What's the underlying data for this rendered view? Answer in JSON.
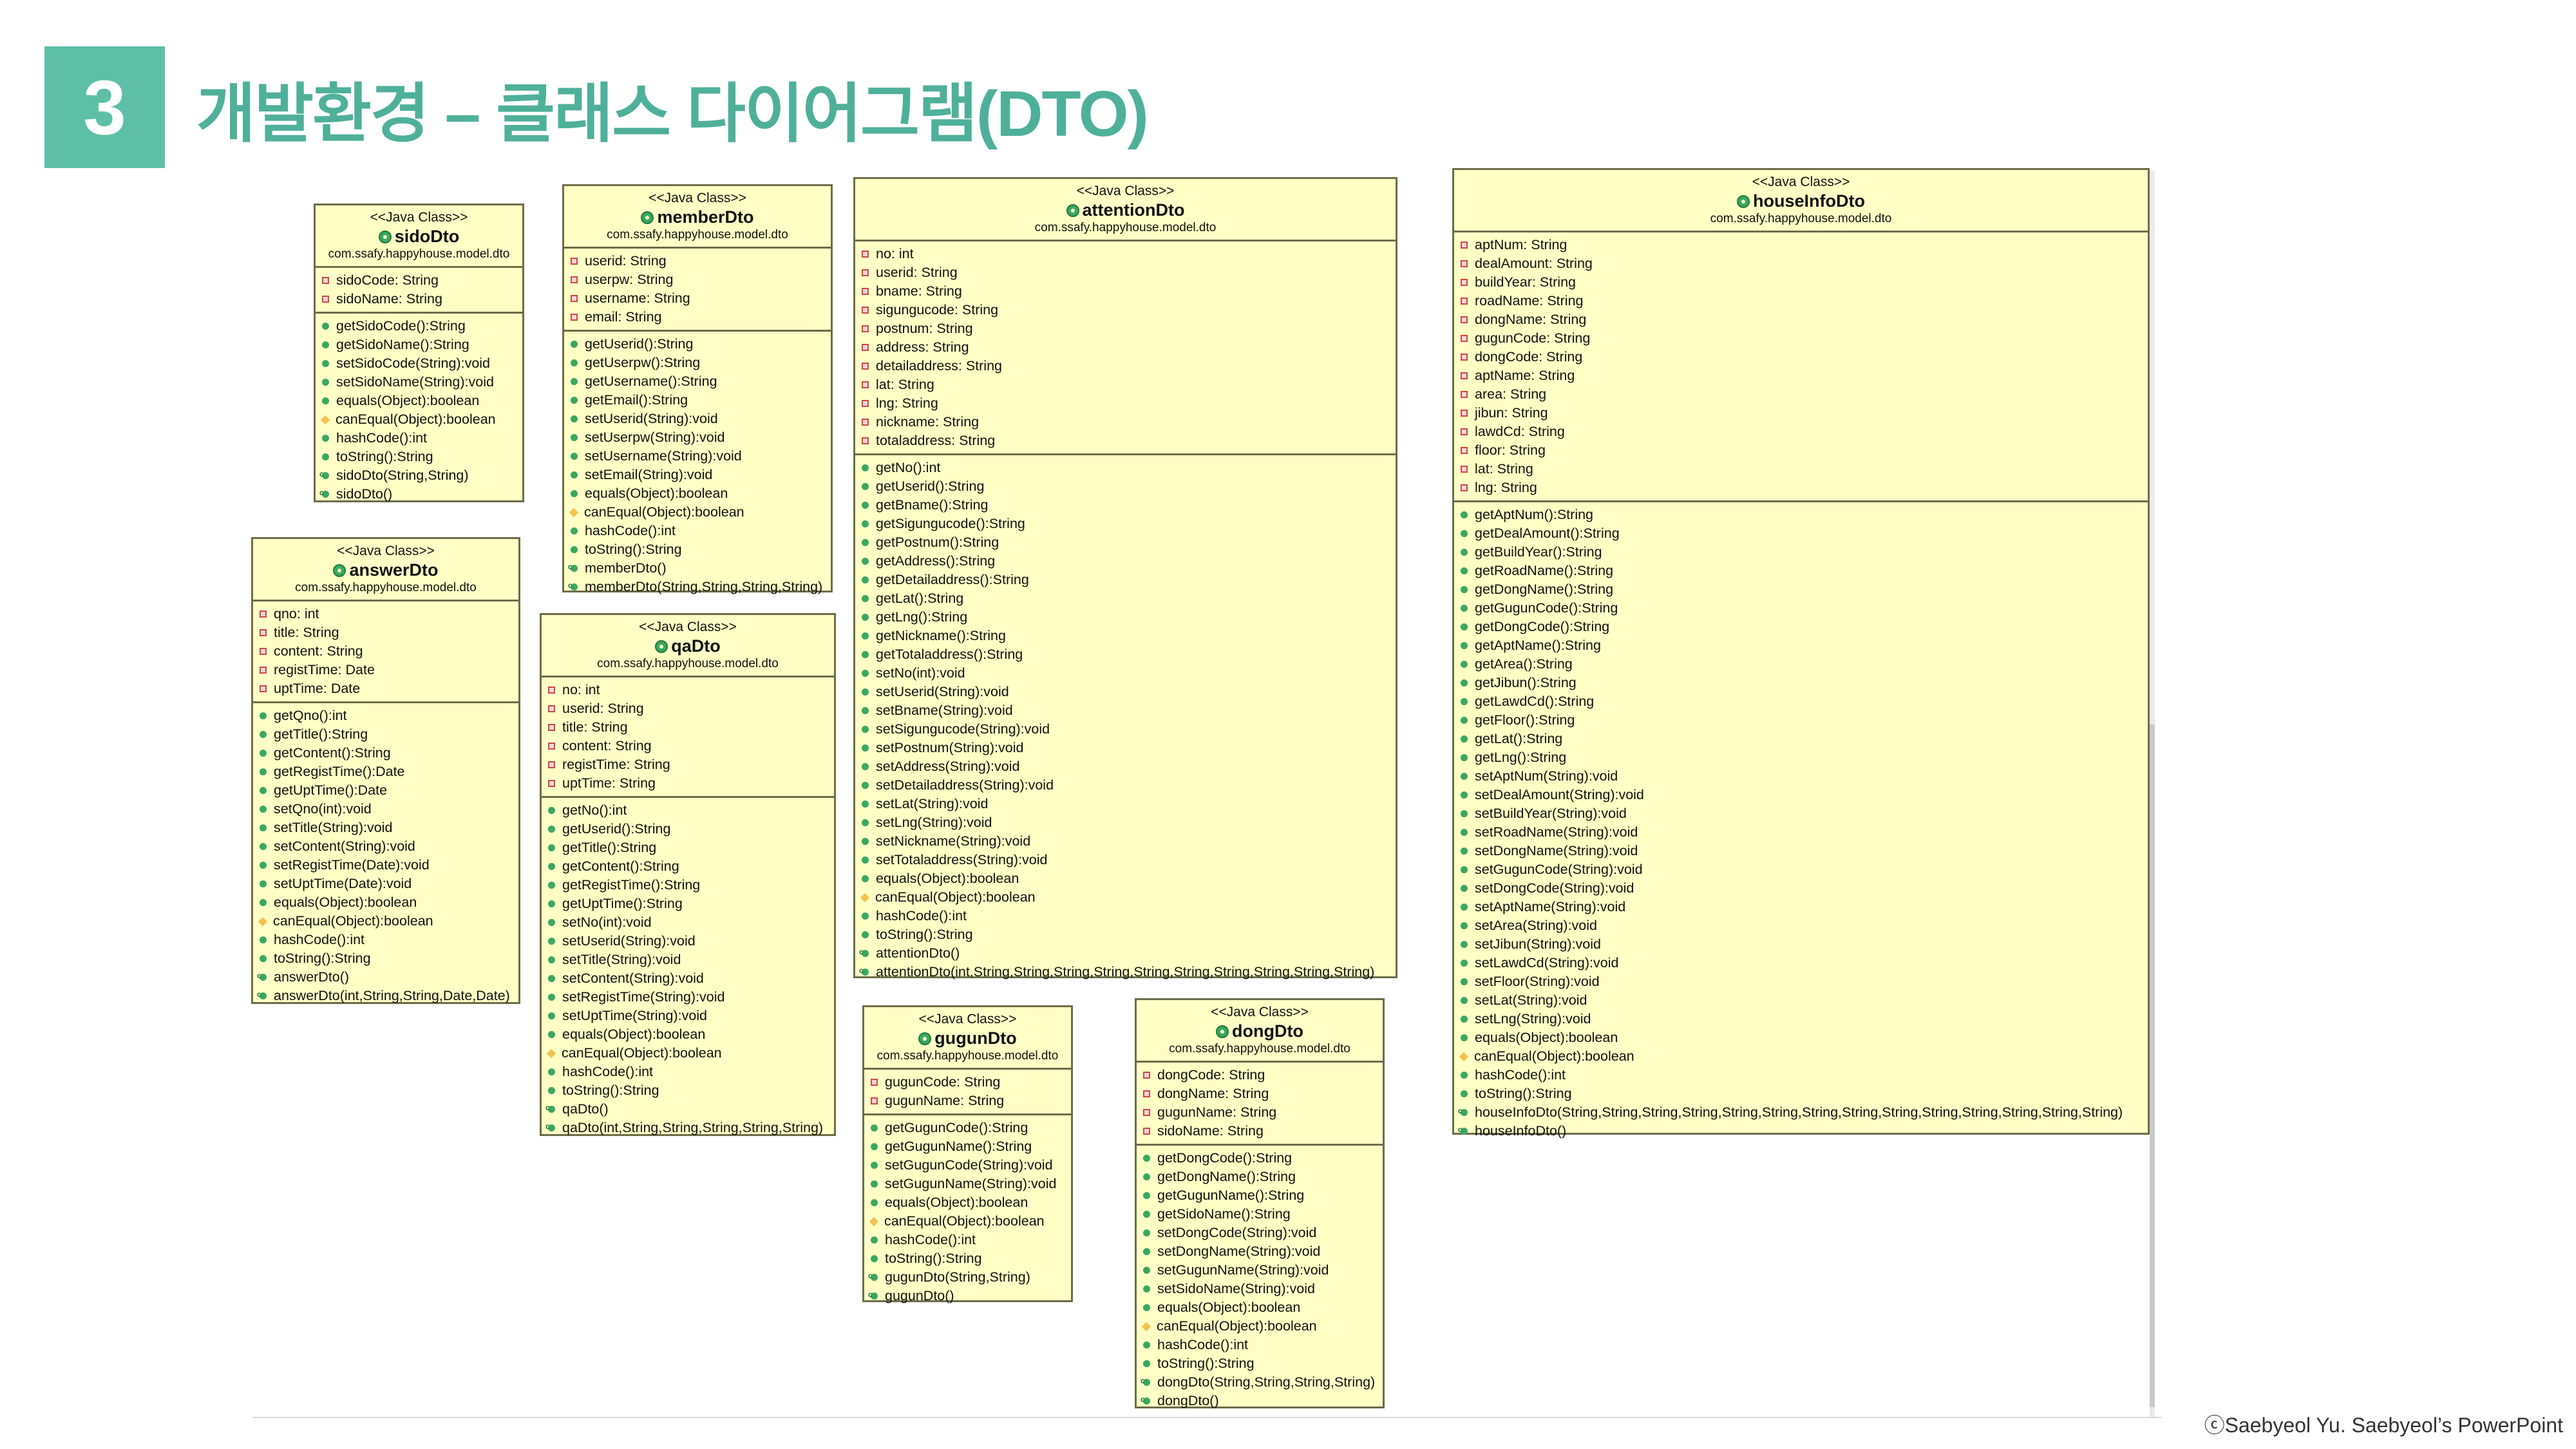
{
  "slide": {
    "number": "3",
    "title": "개발환경 – 클래스 다이어그램(DTO)",
    "copyright": "ⓒSaebyeol Yu. Saebyeol’s PowerPoint"
  },
  "colors": {
    "accent": "#5dbfa6",
    "title": "#4fb09a",
    "uml_fill": "#ffffc6",
    "uml_border": "#6d6d4a"
  },
  "classes": [
    {
      "stereotype": "<<Java Class>>",
      "name": "sidoDto",
      "package": "com.ssafy.happyhouse.model.dto",
      "fields": [
        {
          "kind": "field",
          "text": "sidoCode: String"
        },
        {
          "kind": "field",
          "text": "sidoName: String"
        }
      ],
      "methods": [
        {
          "kind": "method",
          "text": "getSidoCode():String"
        },
        {
          "kind": "method",
          "text": "getSidoName():String"
        },
        {
          "kind": "method",
          "text": "setSidoCode(String):void"
        },
        {
          "kind": "method",
          "text": "setSidoName(String):void"
        },
        {
          "kind": "method",
          "text": "equals(Object):boolean"
        },
        {
          "kind": "protected",
          "text": "canEqual(Object):boolean"
        },
        {
          "kind": "method",
          "text": "hashCode():int"
        },
        {
          "kind": "method",
          "text": "toString():String"
        },
        {
          "kind": "ctor",
          "text": "sidoDto(String,String)"
        },
        {
          "kind": "ctor",
          "text": "sidoDto()"
        }
      ]
    },
    {
      "stereotype": "<<Java Class>>",
      "name": "memberDto",
      "package": "com.ssafy.happyhouse.model.dto",
      "fields": [
        {
          "kind": "field",
          "text": "userid: String"
        },
        {
          "kind": "field",
          "text": "userpw: String"
        },
        {
          "kind": "field",
          "text": "username: String"
        },
        {
          "kind": "field",
          "text": "email: String"
        }
      ],
      "methods": [
        {
          "kind": "method",
          "text": "getUserid():String"
        },
        {
          "kind": "method",
          "text": "getUserpw():String"
        },
        {
          "kind": "method",
          "text": "getUsername():String"
        },
        {
          "kind": "method",
          "text": "getEmail():String"
        },
        {
          "kind": "method",
          "text": "setUserid(String):void"
        },
        {
          "kind": "method",
          "text": "setUserpw(String):void"
        },
        {
          "kind": "method",
          "text": "setUsername(String):void"
        },
        {
          "kind": "method",
          "text": "setEmail(String):void"
        },
        {
          "kind": "method",
          "text": "equals(Object):boolean"
        },
        {
          "kind": "protected",
          "text": "canEqual(Object):boolean"
        },
        {
          "kind": "method",
          "text": "hashCode():int"
        },
        {
          "kind": "method",
          "text": "toString():String"
        },
        {
          "kind": "ctor",
          "text": "memberDto()"
        },
        {
          "kind": "ctor",
          "text": "memberDto(String,String,String,String)"
        }
      ]
    },
    {
      "stereotype": "<<Java Class>>",
      "name": "attentionDto",
      "package": "com.ssafy.happyhouse.model.dto",
      "fields": [
        {
          "kind": "field",
          "text": "no: int"
        },
        {
          "kind": "field",
          "text": "userid: String"
        },
        {
          "kind": "field",
          "text": "bname: String"
        },
        {
          "kind": "field",
          "text": "sigungucode: String"
        },
        {
          "kind": "field",
          "text": "postnum: String"
        },
        {
          "kind": "field",
          "text": "address: String"
        },
        {
          "kind": "field",
          "text": "detailaddress: String"
        },
        {
          "kind": "field",
          "text": "lat: String"
        },
        {
          "kind": "field",
          "text": "lng: String"
        },
        {
          "kind": "field",
          "text": "nickname: String"
        },
        {
          "kind": "field",
          "text": "totaladdress: String"
        }
      ],
      "methods": [
        {
          "kind": "method",
          "text": "getNo():int"
        },
        {
          "kind": "method",
          "text": "getUserid():String"
        },
        {
          "kind": "method",
          "text": "getBname():String"
        },
        {
          "kind": "method",
          "text": "getSigungucode():String"
        },
        {
          "kind": "method",
          "text": "getPostnum():String"
        },
        {
          "kind": "method",
          "text": "getAddress():String"
        },
        {
          "kind": "method",
          "text": "getDetailaddress():String"
        },
        {
          "kind": "method",
          "text": "getLat():String"
        },
        {
          "kind": "method",
          "text": "getLng():String"
        },
        {
          "kind": "method",
          "text": "getNickname():String"
        },
        {
          "kind": "method",
          "text": "getTotaladdress():String"
        },
        {
          "kind": "method",
          "text": "setNo(int):void"
        },
        {
          "kind": "method",
          "text": "setUserid(String):void"
        },
        {
          "kind": "method",
          "text": "setBname(String):void"
        },
        {
          "kind": "method",
          "text": "setSigungucode(String):void"
        },
        {
          "kind": "method",
          "text": "setPostnum(String):void"
        },
        {
          "kind": "method",
          "text": "setAddress(String):void"
        },
        {
          "kind": "method",
          "text": "setDetailaddress(String):void"
        },
        {
          "kind": "method",
          "text": "setLat(String):void"
        },
        {
          "kind": "method",
          "text": "setLng(String):void"
        },
        {
          "kind": "method",
          "text": "setNickname(String):void"
        },
        {
          "kind": "method",
          "text": "setTotaladdress(String):void"
        },
        {
          "kind": "method",
          "text": "equals(Object):boolean"
        },
        {
          "kind": "protected",
          "text": "canEqual(Object):boolean"
        },
        {
          "kind": "method",
          "text": "hashCode():int"
        },
        {
          "kind": "method",
          "text": "toString():String"
        },
        {
          "kind": "ctor",
          "text": "attentionDto()"
        },
        {
          "kind": "ctor",
          "text": "attentionDto(int,String,String,String,String,String,String,String,String,String,String)"
        }
      ]
    },
    {
      "stereotype": "<<Java Class>>",
      "name": "houseInfoDto",
      "package": "com.ssafy.happyhouse.model.dto",
      "fields": [
        {
          "kind": "field",
          "text": "aptNum: String"
        },
        {
          "kind": "field",
          "text": "dealAmount: String"
        },
        {
          "kind": "field",
          "text": "buildYear: String"
        },
        {
          "kind": "field",
          "text": "roadName: String"
        },
        {
          "kind": "field",
          "text": "dongName: String"
        },
        {
          "kind": "field",
          "text": "gugunCode: String"
        },
        {
          "kind": "field",
          "text": "dongCode: String"
        },
        {
          "kind": "field",
          "text": "aptName: String"
        },
        {
          "kind": "field",
          "text": "area: String"
        },
        {
          "kind": "field",
          "text": "jibun: String"
        },
        {
          "kind": "field",
          "text": "lawdCd: String"
        },
        {
          "kind": "field",
          "text": "floor: String"
        },
        {
          "kind": "field",
          "text": "lat: String"
        },
        {
          "kind": "field",
          "text": "lng: String"
        }
      ],
      "methods": [
        {
          "kind": "method",
          "text": "getAptNum():String"
        },
        {
          "kind": "method",
          "text": "getDealAmount():String"
        },
        {
          "kind": "method",
          "text": "getBuildYear():String"
        },
        {
          "kind": "method",
          "text": "getRoadName():String"
        },
        {
          "kind": "method",
          "text": "getDongName():String"
        },
        {
          "kind": "method",
          "text": "getGugunCode():String"
        },
        {
          "kind": "method",
          "text": "getDongCode():String"
        },
        {
          "kind": "method",
          "text": "getAptName():String"
        },
        {
          "kind": "method",
          "text": "getArea():String"
        },
        {
          "kind": "method",
          "text": "getJibun():String"
        },
        {
          "kind": "method",
          "text": "getLawdCd():String"
        },
        {
          "kind": "method",
          "text": "getFloor():String"
        },
        {
          "kind": "method",
          "text": "getLat():String"
        },
        {
          "kind": "method",
          "text": "getLng():String"
        },
        {
          "kind": "method",
          "text": "setAptNum(String):void"
        },
        {
          "kind": "method",
          "text": "setDealAmount(String):void"
        },
        {
          "kind": "method",
          "text": "setBuildYear(String):void"
        },
        {
          "kind": "method",
          "text": "setRoadName(String):void"
        },
        {
          "kind": "method",
          "text": "setDongName(String):void"
        },
        {
          "kind": "method",
          "text": "setGugunCode(String):void"
        },
        {
          "kind": "method",
          "text": "setDongCode(String):void"
        },
        {
          "kind": "method",
          "text": "setAptName(String):void"
        },
        {
          "kind": "method",
          "text": "setArea(String):void"
        },
        {
          "kind": "method",
          "text": "setJibun(String):void"
        },
        {
          "kind": "method",
          "text": "setLawdCd(String):void"
        },
        {
          "kind": "method",
          "text": "setFloor(String):void"
        },
        {
          "kind": "method",
          "text": "setLat(String):void"
        },
        {
          "kind": "method",
          "text": "setLng(String):void"
        },
        {
          "kind": "method",
          "text": "equals(Object):boolean"
        },
        {
          "kind": "protected",
          "text": "canEqual(Object):boolean"
        },
        {
          "kind": "method",
          "text": "hashCode():int"
        },
        {
          "kind": "method",
          "text": "toString():String"
        },
        {
          "kind": "ctor",
          "text": "houseInfoDto(String,String,String,String,String,String,String,String,String,String,String,String,String,String)"
        },
        {
          "kind": "ctor",
          "text": "houseInfoDto()"
        }
      ]
    },
    {
      "stereotype": "<<Java Class>>",
      "name": "answerDto",
      "package": "com.ssafy.happyhouse.model.dto",
      "fields": [
        {
          "kind": "field",
          "text": "qno: int"
        },
        {
          "kind": "field",
          "text": "title: String"
        },
        {
          "kind": "field",
          "text": "content: String"
        },
        {
          "kind": "field",
          "text": "registTime: Date"
        },
        {
          "kind": "field",
          "text": "uptTime: Date"
        }
      ],
      "methods": [
        {
          "kind": "method",
          "text": "getQno():int"
        },
        {
          "kind": "method",
          "text": "getTitle():String"
        },
        {
          "kind": "method",
          "text": "getContent():String"
        },
        {
          "kind": "method",
          "text": "getRegistTime():Date"
        },
        {
          "kind": "method",
          "text": "getUptTime():Date"
        },
        {
          "kind": "method",
          "text": "setQno(int):void"
        },
        {
          "kind": "method",
          "text": "setTitle(String):void"
        },
        {
          "kind": "method",
          "text": "setContent(String):void"
        },
        {
          "kind": "method",
          "text": "setRegistTime(Date):void"
        },
        {
          "kind": "method",
          "text": "setUptTime(Date):void"
        },
        {
          "kind": "method",
          "text": "equals(Object):boolean"
        },
        {
          "kind": "protected",
          "text": "canEqual(Object):boolean"
        },
        {
          "kind": "method",
          "text": "hashCode():int"
        },
        {
          "kind": "method",
          "text": "toString():String"
        },
        {
          "kind": "ctor",
          "text": "answerDto()"
        },
        {
          "kind": "ctor",
          "text": "answerDto(int,String,String,Date,Date)"
        }
      ]
    },
    {
      "stereotype": "<<Java Class>>",
      "name": "qaDto",
      "package": "com.ssafy.happyhouse.model.dto",
      "fields": [
        {
          "kind": "field",
          "text": "no: int"
        },
        {
          "kind": "field",
          "text": "userid: String"
        },
        {
          "kind": "field",
          "text": "title: String"
        },
        {
          "kind": "field",
          "text": "content: String"
        },
        {
          "kind": "field",
          "text": "registTime: String"
        },
        {
          "kind": "field",
          "text": "uptTime: String"
        }
      ],
      "methods": [
        {
          "kind": "method",
          "text": "getNo():int"
        },
        {
          "kind": "method",
          "text": "getUserid():String"
        },
        {
          "kind": "method",
          "text": "getTitle():String"
        },
        {
          "kind": "method",
          "text": "getContent():String"
        },
        {
          "kind": "method",
          "text": "getRegistTime():String"
        },
        {
          "kind": "method",
          "text": "getUptTime():String"
        },
        {
          "kind": "method",
          "text": "setNo(int):void"
        },
        {
          "kind": "method",
          "text": "setUserid(String):void"
        },
        {
          "kind": "method",
          "text": "setTitle(String):void"
        },
        {
          "kind": "method",
          "text": "setContent(String):void"
        },
        {
          "kind": "method",
          "text": "setRegistTime(String):void"
        },
        {
          "kind": "method",
          "text": "setUptTime(String):void"
        },
        {
          "kind": "method",
          "text": "equals(Object):boolean"
        },
        {
          "kind": "protected",
          "text": "canEqual(Object):boolean"
        },
        {
          "kind": "method",
          "text": "hashCode():int"
        },
        {
          "kind": "method",
          "text": "toString():String"
        },
        {
          "kind": "ctor",
          "text": "qaDto()"
        },
        {
          "kind": "ctor",
          "text": "qaDto(int,String,String,String,String,String)"
        }
      ]
    },
    {
      "stereotype": "<<Java Class>>",
      "name": "gugunDto",
      "package": "com.ssafy.happyhouse.model.dto",
      "fields": [
        {
          "kind": "field",
          "text": "gugunCode: String"
        },
        {
          "kind": "field",
          "text": "gugunName: String"
        }
      ],
      "methods": [
        {
          "kind": "method",
          "text": "getGugunCode():String"
        },
        {
          "kind": "method",
          "text": "getGugunName():String"
        },
        {
          "kind": "method",
          "text": "setGugunCode(String):void"
        },
        {
          "kind": "method",
          "text": "setGugunName(String):void"
        },
        {
          "kind": "method",
          "text": "equals(Object):boolean"
        },
        {
          "kind": "protected",
          "text": "canEqual(Object):boolean"
        },
        {
          "kind": "method",
          "text": "hashCode():int"
        },
        {
          "kind": "method",
          "text": "toString():String"
        },
        {
          "kind": "ctor",
          "text": "gugunDto(String,String)"
        },
        {
          "kind": "ctor",
          "text": "gugunDto()"
        }
      ]
    },
    {
      "stereotype": "<<Java Class>>",
      "name": "dongDto",
      "package": "com.ssafy.happyhouse.model.dto",
      "fields": [
        {
          "kind": "field",
          "text": "dongCode: String"
        },
        {
          "kind": "field",
          "text": "dongName: String"
        },
        {
          "kind": "field",
          "text": "gugunName: String"
        },
        {
          "kind": "field",
          "text": "sidoName: String"
        }
      ],
      "methods": [
        {
          "kind": "method",
          "text": "getDongCode():String"
        },
        {
          "kind": "method",
          "text": "getDongName():String"
        },
        {
          "kind": "method",
          "text": "getGugunName():String"
        },
        {
          "kind": "method",
          "text": "getSidoName():String"
        },
        {
          "kind": "method",
          "text": "setDongCode(String):void"
        },
        {
          "kind": "method",
          "text": "setDongName(String):void"
        },
        {
          "kind": "method",
          "text": "setGugunName(String):void"
        },
        {
          "kind": "method",
          "text": "setSidoName(String):void"
        },
        {
          "kind": "method",
          "text": "equals(Object):boolean"
        },
        {
          "kind": "protected",
          "text": "canEqual(Object):boolean"
        },
        {
          "kind": "method",
          "text": "hashCode():int"
        },
        {
          "kind": "method",
          "text": "toString():String"
        },
        {
          "kind": "ctor",
          "text": "dongDto(String,String,String,String)"
        },
        {
          "kind": "ctor",
          "text": "dongDto()"
        }
      ]
    }
  ]
}
